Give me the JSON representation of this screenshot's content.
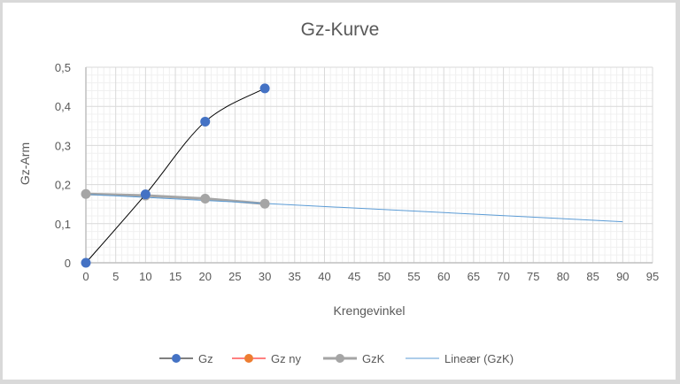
{
  "chart_data": {
    "type": "scatter",
    "title": "Gz-Kurve",
    "xlabel": "Krengevinkel",
    "ylabel": "Gz-Arm",
    "xlim": [
      0,
      95
    ],
    "ylim": [
      0,
      0.5
    ],
    "x_ticks": [
      "0",
      "5",
      "10",
      "15",
      "20",
      "25",
      "30",
      "35",
      "40",
      "45",
      "50",
      "55",
      "60",
      "65",
      "70",
      "75",
      "80",
      "85",
      "90",
      "95"
    ],
    "y_ticks": [
      "0",
      "0,1",
      "0,2",
      "0,3",
      "0,4",
      "0,5"
    ],
    "grid": {
      "major": true,
      "minor": true
    },
    "legend_position": "bottom",
    "series": [
      {
        "name": "Gz",
        "color": "#4472c4",
        "line_color": "#000000",
        "marker": "circle",
        "smooth": true,
        "x": [
          0,
          10,
          20,
          30
        ],
        "y": [
          0,
          0.175,
          0.361,
          0.446
        ]
      },
      {
        "name": "Gz ny",
        "color": "#ed7d31",
        "line_color": "#ff0000",
        "marker": "circle",
        "x": [],
        "y": []
      },
      {
        "name": "GzK",
        "color": "#a5a5a5",
        "line_color": "#a5a5a5",
        "marker": "circle",
        "x": [
          0,
          10,
          20,
          30
        ],
        "y": [
          0.176,
          0.172,
          0.164,
          0.151
        ]
      },
      {
        "name": "Lineær (GzK)",
        "color": "#5b9bd5",
        "type": "trendline-linear",
        "x": [
          0,
          90
        ],
        "y": [
          0.175,
          0.105
        ]
      }
    ]
  },
  "legend": {
    "items": [
      {
        "label": "Gz"
      },
      {
        "label": "Gz ny"
      },
      {
        "label": "GzK"
      },
      {
        "label": "Lineær (GzK)"
      }
    ]
  }
}
